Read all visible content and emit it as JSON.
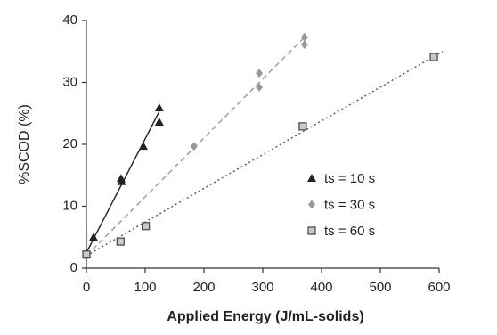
{
  "chart_data": {
    "type": "scatter",
    "x_label": "Applied Energy (J/mL-solids)",
    "y_label": "%SCOD (%)",
    "xlim": [
      0,
      600
    ],
    "xticks": [
      0,
      100,
      200,
      300,
      400,
      500,
      600
    ],
    "ylim": [
      0,
      40
    ],
    "yticks": [
      0,
      10,
      20,
      30,
      40
    ],
    "legend": "right",
    "series": [
      {
        "name": "ts = 10 s",
        "color": "#222222",
        "marker": "triangle",
        "line_style": "solid",
        "x": [
          12,
          59,
          60,
          97,
          124,
          124
        ],
        "values": [
          5,
          14.5,
          14,
          19.7,
          25.9,
          23.6
        ],
        "trendline": {
          "x": [
            0,
            124
          ],
          "values": [
            2.5,
            25.3
          ]
        }
      },
      {
        "name": "ts = 30 s",
        "color": "#999999",
        "marker": "diamond",
        "line_style": "dashed",
        "x": [
          0,
          183,
          294,
          294,
          371,
          371
        ],
        "values": [
          2.2,
          19.7,
          31.5,
          29.2,
          37.3,
          36.1
        ],
        "trendline": {
          "x": [
            0,
            371
          ],
          "values": [
            2,
            37.3
          ]
        }
      },
      {
        "name": "ts = 60 s",
        "color": "#c8c8c8",
        "marker": "square",
        "line_style": "dotted",
        "x": [
          0,
          58,
          101,
          368,
          591
        ],
        "values": [
          2.2,
          4.3,
          6.8,
          22.9,
          34.1
        ],
        "trendline": {
          "x": [
            0,
            606
          ],
          "values": [
            2,
            35
          ]
        }
      }
    ]
  }
}
